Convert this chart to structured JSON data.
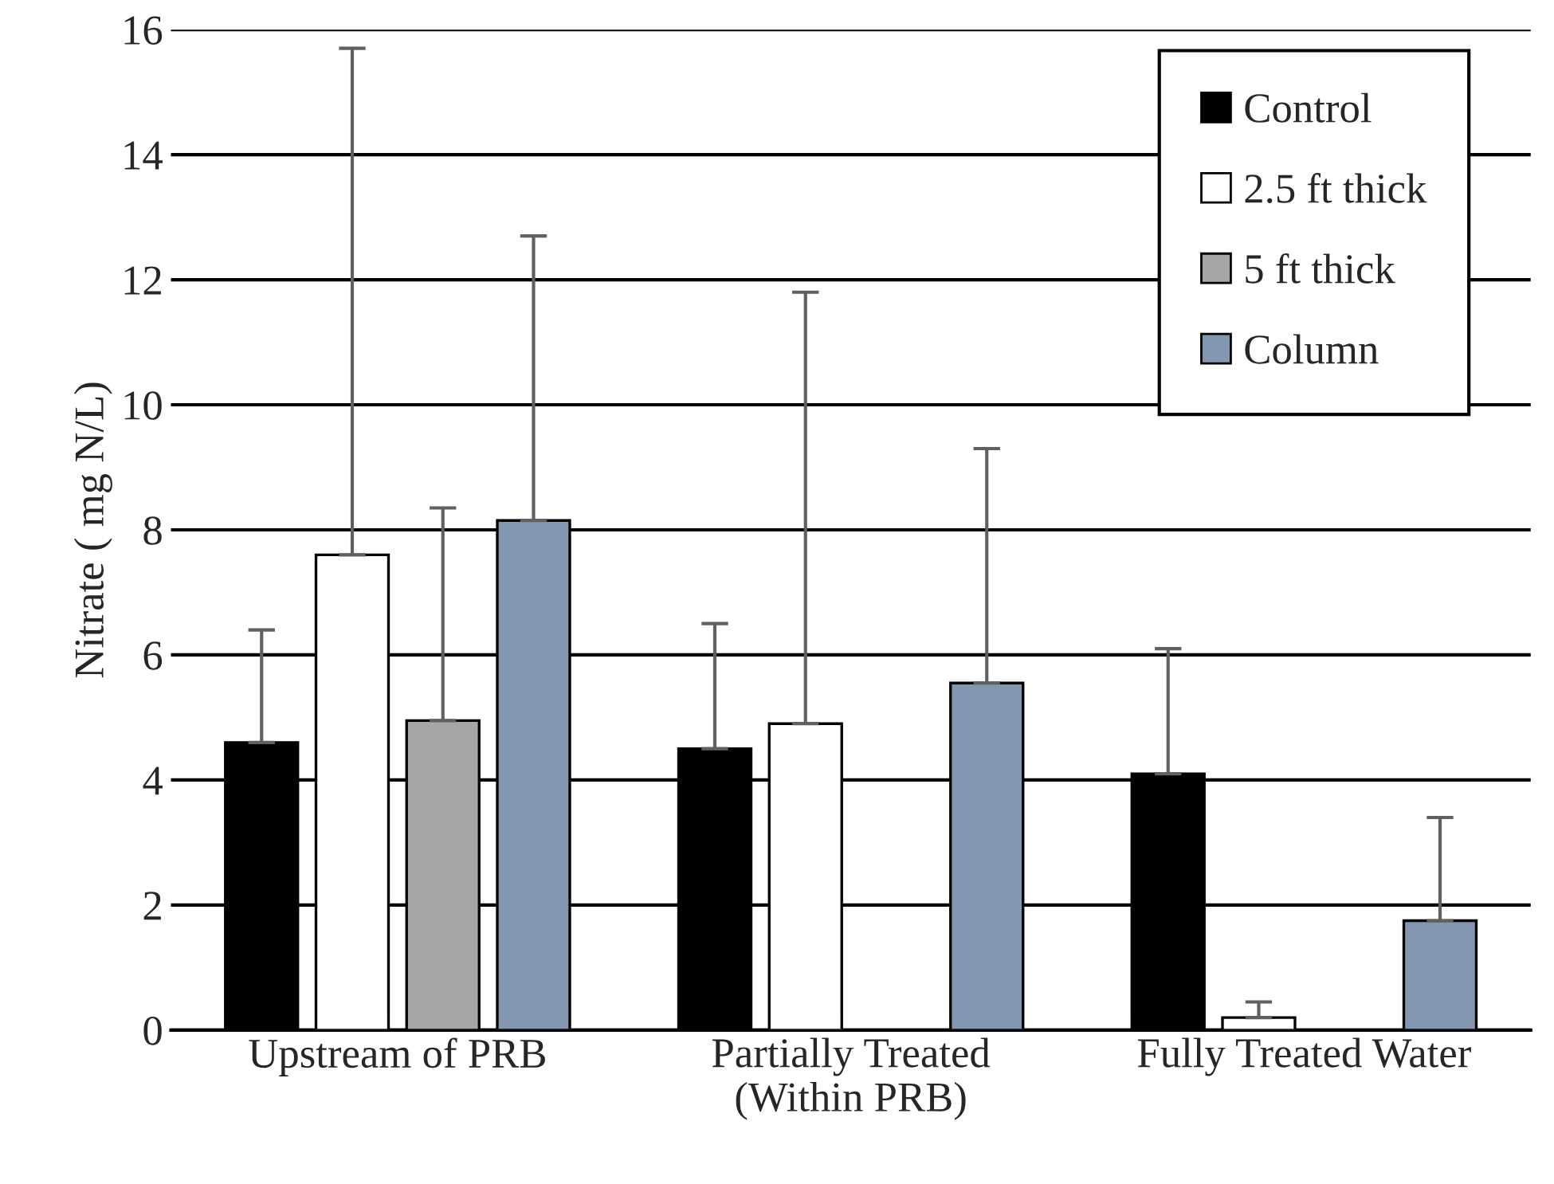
{
  "chart_data": {
    "type": "bar",
    "ylabel": "Nitrate ( mg N/L)",
    "categories": [
      "Upstream of PRB",
      "Partially Treated\n(Within PRB)",
      "Fully Treated Water"
    ],
    "series": [
      {
        "name": "Control",
        "color": "#000000",
        "values": [
          4.6,
          4.5,
          4.1
        ],
        "errors": [
          [
            4.6,
            6.4
          ],
          [
            4.5,
            6.5
          ],
          [
            4.1,
            6.1
          ]
        ]
      },
      {
        "name": "2.5 ft thick",
        "color": "#ffffff",
        "values": [
          7.6,
          4.9,
          0.2
        ],
        "errors": [
          [
            7.6,
            15.7
          ],
          [
            4.9,
            11.8
          ],
          [
            0.2,
            0.45
          ]
        ]
      },
      {
        "name": "5 ft thick",
        "color": "#a6a6a6",
        "values": [
          4.95,
          null,
          null
        ],
        "errors": [
          [
            4.95,
            8.35
          ],
          null,
          null
        ]
      },
      {
        "name": "Column",
        "color": "#8497b0",
        "values": [
          8.15,
          5.55,
          1.75
        ],
        "errors": [
          [
            8.15,
            12.7
          ],
          [
            5.55,
            9.3
          ],
          [
            1.75,
            3.4
          ]
        ]
      }
    ],
    "ylim": [
      0,
      16
    ],
    "yticks": [
      0,
      2,
      4,
      6,
      8,
      10,
      12,
      14,
      16
    ],
    "grid": "y",
    "legend": "top right"
  }
}
